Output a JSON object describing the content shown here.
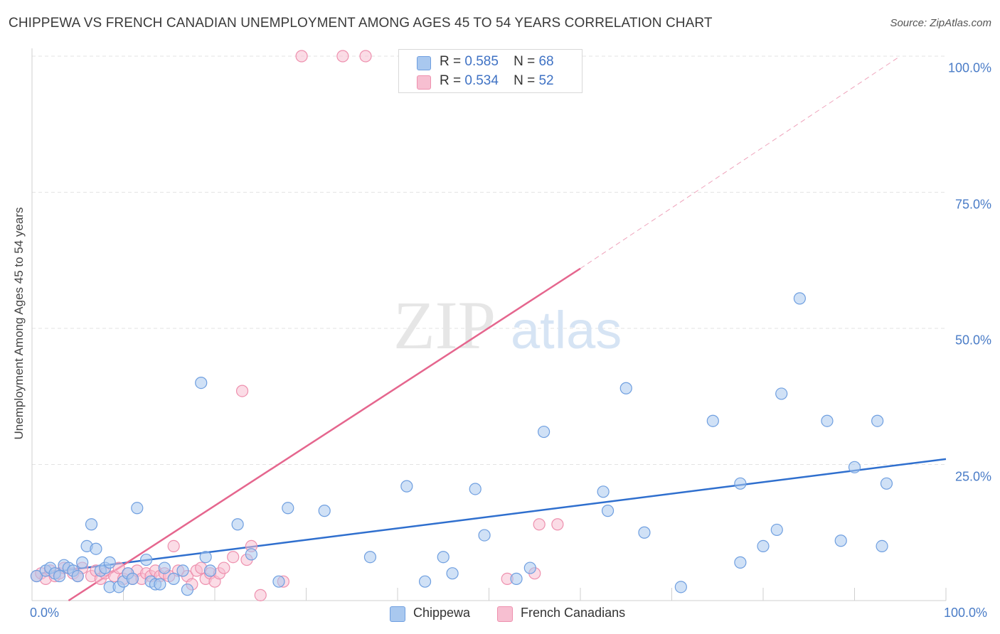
{
  "title": "CHIPPEWA VS FRENCH CANADIAN UNEMPLOYMENT AMONG AGES 45 TO 54 YEARS CORRELATION CHART",
  "source": "Source: ZipAtlas.com",
  "watermark": {
    "zip": "ZIP",
    "atlas": "atlas"
  },
  "colors": {
    "chippewa_fill": "#a9c8ef",
    "chippewa_stroke": "#6f9fe0",
    "chippewa_line": "#2f6fce",
    "french_fill": "#f7bfd1",
    "french_stroke": "#ee90ae",
    "french_line": "#e5668e",
    "tick_text": "#4a7cc7",
    "grid": "#e3e3e3"
  },
  "legend": {
    "rows": [
      {
        "r_label": "R =",
        "r_value": "0.585",
        "n_label": "N =",
        "n_value": "68",
        "series": "Chippewa"
      },
      {
        "r_label": "R =",
        "r_value": "0.534",
        "n_label": "N =",
        "n_value": "52",
        "series": "French Canadians"
      }
    ]
  },
  "chart_data": {
    "type": "scatter",
    "title": "CHIPPEWA VS FRENCH CANADIAN UNEMPLOYMENT AMONG AGES 45 TO 54 YEARS CORRELATION CHART",
    "xlabel": "",
    "ylabel": "Unemployment Among Ages 45 to 54 years",
    "xlim": [
      0,
      100
    ],
    "ylim": [
      0,
      100
    ],
    "x_tick_labels": [
      "0.0%",
      "100.0%"
    ],
    "y_ticks": [
      25,
      50,
      75,
      100
    ],
    "y_tick_labels": [
      "25.0%",
      "50.0%",
      "75.0%",
      "100.0%"
    ],
    "grid": true,
    "legend_position": "top-center",
    "series": [
      {
        "name": "Chippewa",
        "points": [
          [
            0.5,
            4.5
          ],
          [
            1.5,
            5.5
          ],
          [
            2,
            6
          ],
          [
            2.5,
            5
          ],
          [
            3,
            4.5
          ],
          [
            3.5,
            6.5
          ],
          [
            4,
            6
          ],
          [
            4.5,
            5.5
          ],
          [
            5,
            4.5
          ],
          [
            5.5,
            7
          ],
          [
            6,
            10
          ],
          [
            6.5,
            14
          ],
          [
            7,
            9.5
          ],
          [
            7.5,
            5.5
          ],
          [
            8,
            6
          ],
          [
            8.5,
            7
          ],
          [
            8.5,
            2.5
          ],
          [
            9.5,
            2.5
          ],
          [
            10,
            3.5
          ],
          [
            10.5,
            5
          ],
          [
            11,
            4
          ],
          [
            11.5,
            17
          ],
          [
            12.5,
            7.5
          ],
          [
            13,
            3.5
          ],
          [
            13.5,
            3
          ],
          [
            14,
            3
          ],
          [
            14.5,
            6
          ],
          [
            15.5,
            4
          ],
          [
            16.5,
            5.5
          ],
          [
            17,
            2
          ],
          [
            18.5,
            40
          ],
          [
            19,
            8
          ],
          [
            19.5,
            5.5
          ],
          [
            22.5,
            14
          ],
          [
            24,
            8.5
          ],
          [
            27,
            3.5
          ],
          [
            28,
            17
          ],
          [
            32,
            16.5
          ],
          [
            37,
            8
          ],
          [
            41,
            21
          ],
          [
            43,
            3.5
          ],
          [
            45,
            8
          ],
          [
            46,
            5
          ],
          [
            48.5,
            20.5
          ],
          [
            49.5,
            12
          ],
          [
            53,
            4
          ],
          [
            54.5,
            6
          ],
          [
            56,
            31
          ],
          [
            62.5,
            20
          ],
          [
            63,
            16.5
          ],
          [
            65,
            39
          ],
          [
            67,
            12.5
          ],
          [
            71,
            2.5
          ],
          [
            74.5,
            33
          ],
          [
            77.5,
            7
          ],
          [
            77.5,
            21.5
          ],
          [
            80,
            10
          ],
          [
            81.5,
            13
          ],
          [
            82,
            38
          ],
          [
            84,
            55.5
          ],
          [
            87,
            33
          ],
          [
            88.5,
            11
          ],
          [
            90,
            24.5
          ],
          [
            92.5,
            33
          ],
          [
            93,
            10
          ],
          [
            93.5,
            21.5
          ]
        ],
        "trendline": {
          "x": [
            1,
            100
          ],
          "y": [
            5,
            26
          ]
        }
      },
      {
        "name": "French Canadians",
        "points": [
          [
            0.5,
            4.5
          ],
          [
            1,
            5
          ],
          [
            1.5,
            4
          ],
          [
            2,
            5.5
          ],
          [
            2.5,
            4.5
          ],
          [
            3,
            5
          ],
          [
            3.5,
            6
          ],
          [
            4.5,
            5
          ],
          [
            5,
            4.5
          ],
          [
            5.5,
            6
          ],
          [
            6.5,
            4.5
          ],
          [
            7,
            5.5
          ],
          [
            7.5,
            4
          ],
          [
            8,
            5
          ],
          [
            9,
            4.5
          ],
          [
            9.5,
            6
          ],
          [
            10,
            4
          ],
          [
            10.5,
            5
          ],
          [
            11,
            4
          ],
          [
            11.5,
            5.5
          ],
          [
            12,
            4
          ],
          [
            12.5,
            5
          ],
          [
            13,
            4.5
          ],
          [
            13.5,
            5.5
          ],
          [
            14,
            4.5
          ],
          [
            14.5,
            5
          ],
          [
            15,
            4.5
          ],
          [
            15.5,
            10
          ],
          [
            16,
            5.5
          ],
          [
            17,
            4.5
          ],
          [
            17.5,
            3
          ],
          [
            18,
            5.5
          ],
          [
            18.5,
            6
          ],
          [
            19,
            4
          ],
          [
            19.5,
            5
          ],
          [
            20,
            3.5
          ],
          [
            20.5,
            5
          ],
          [
            21,
            6
          ],
          [
            22,
            8
          ],
          [
            23,
            38.5
          ],
          [
            23.5,
            7.5
          ],
          [
            24,
            10
          ],
          [
            25,
            1
          ],
          [
            27.5,
            3.5
          ],
          [
            29.5,
            100
          ],
          [
            34,
            100
          ],
          [
            36.5,
            100
          ],
          [
            55.5,
            14
          ],
          [
            57.5,
            14
          ],
          [
            52,
            4
          ],
          [
            55,
            5
          ]
        ],
        "trendline": {
          "x": [
            4,
            60
          ],
          "y": [
            0,
            61
          ]
        },
        "trendline_extension": {
          "x": [
            60,
            95
          ],
          "y": [
            61,
            100
          ]
        }
      }
    ]
  },
  "bottom_legend": [
    "Chippewa",
    "French Canadians"
  ]
}
